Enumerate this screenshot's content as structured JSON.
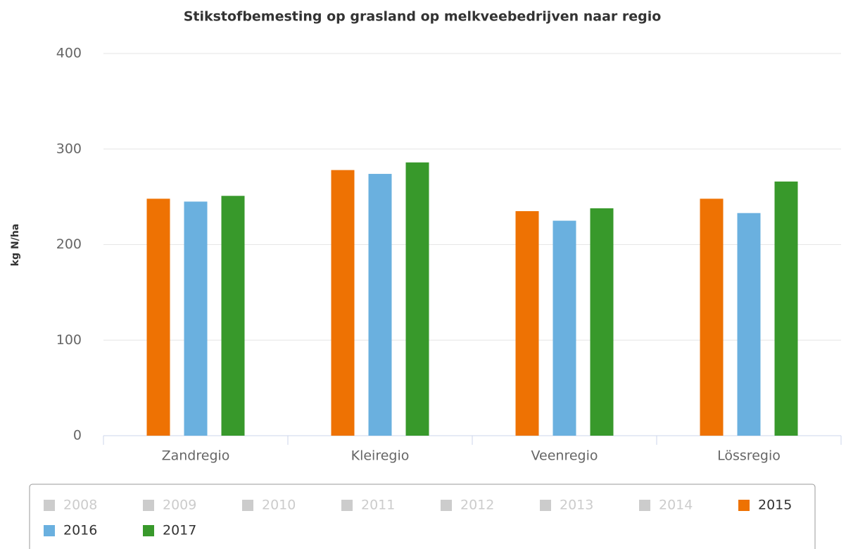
{
  "chart_data": {
    "type": "bar",
    "title": "Stikstofbemesting op grasland op melkveebedrijven naar regio",
    "y_label": "kg N/ha",
    "categories": [
      "Zandregio",
      "Kleiregio",
      "Veenregio",
      "Lössregio"
    ],
    "series": [
      {
        "name": "2008",
        "visible": false
      },
      {
        "name": "2009",
        "visible": false
      },
      {
        "name": "2010",
        "visible": false
      },
      {
        "name": "2011",
        "visible": false
      },
      {
        "name": "2012",
        "visible": false
      },
      {
        "name": "2013",
        "visible": false
      },
      {
        "name": "2014",
        "visible": false
      },
      {
        "name": "2015",
        "color": "#ee7203",
        "values": [
          248,
          278,
          235,
          248
        ]
      },
      {
        "name": "2016",
        "color": "#6ab0df",
        "values": [
          245,
          274,
          225,
          233
        ]
      },
      {
        "name": "2017",
        "color": "#38992b",
        "values": [
          251,
          286,
          238,
          266
        ]
      }
    ],
    "hidden_color": "#cccccc",
    "ylim": [
      0,
      400
    ],
    "yticks": [
      0,
      100,
      200,
      300,
      400
    ],
    "grid": true
  }
}
